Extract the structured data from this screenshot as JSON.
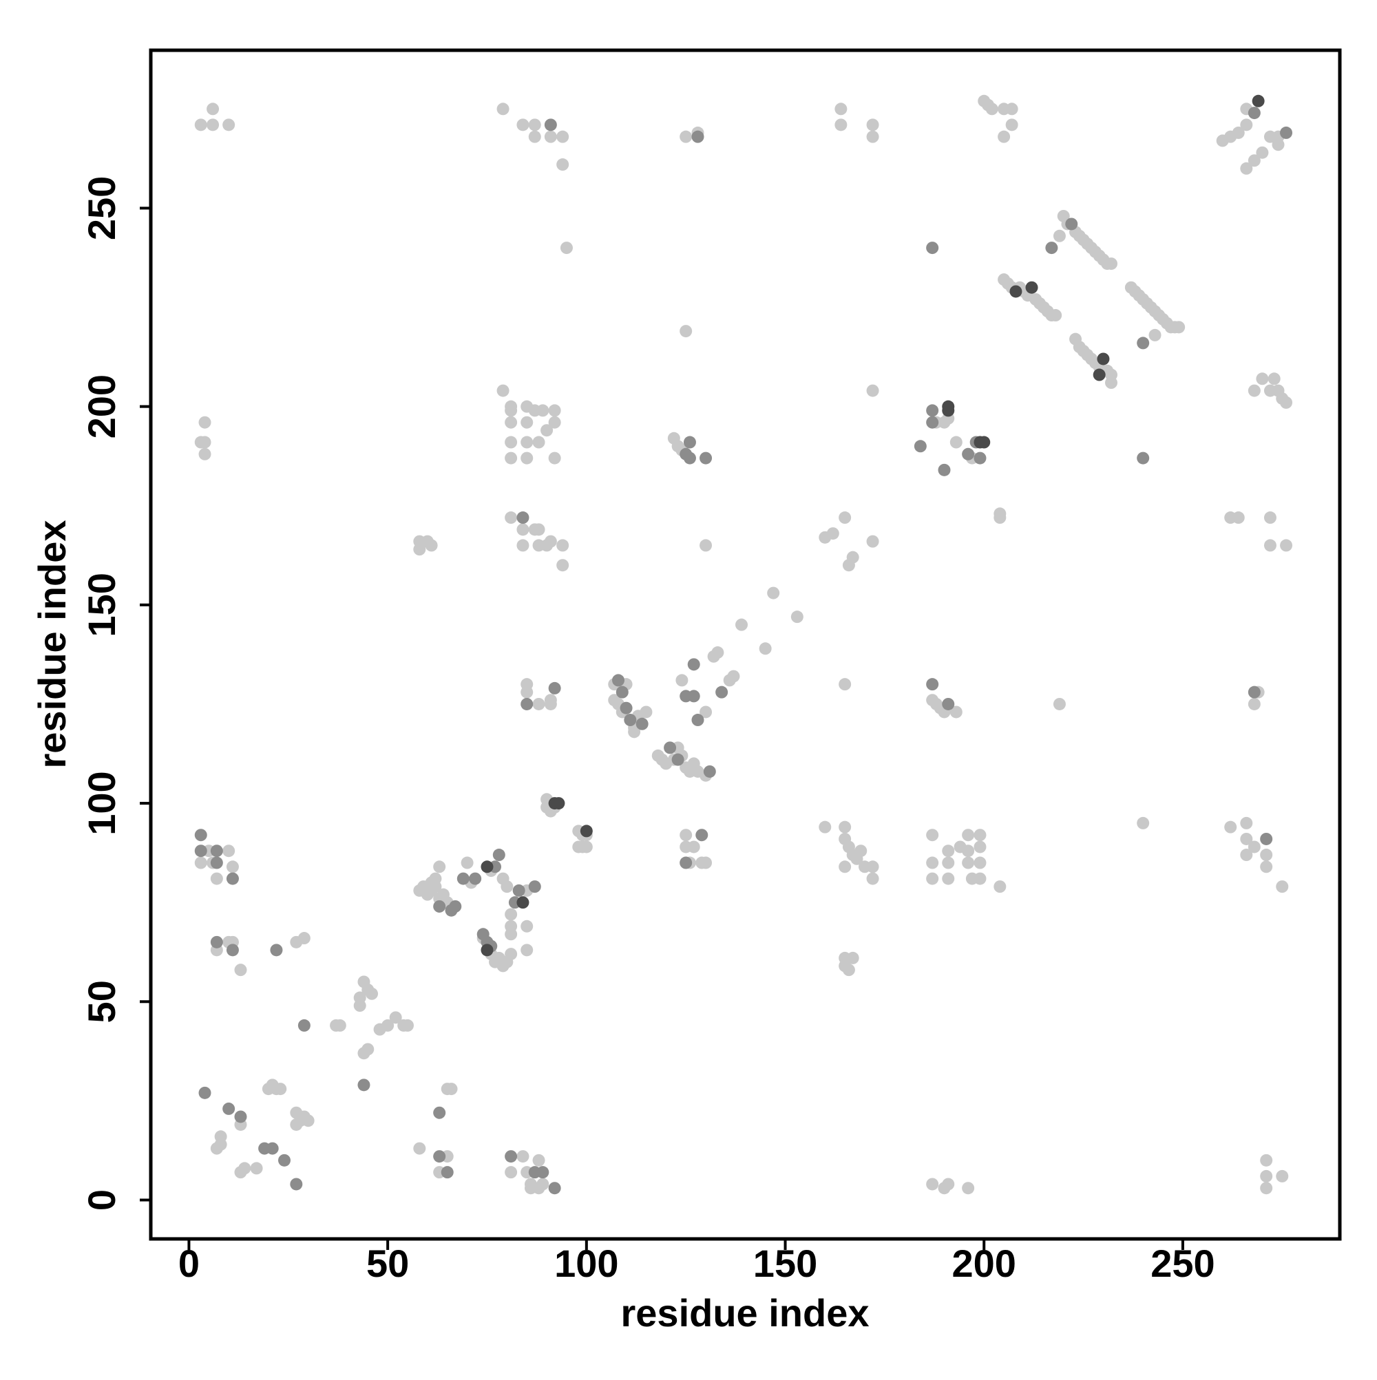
{
  "chart_data": {
    "type": "scatter",
    "x_label": "residue index",
    "y_label": "residue index",
    "xlim": [
      -9.6,
      289.5
    ],
    "ylim": [
      -9.8,
      289.8
    ],
    "xticks": [
      0,
      50,
      100,
      150,
      200,
      250
    ],
    "yticks": [
      0,
      50,
      100,
      150,
      200,
      250
    ],
    "grid": false,
    "series": [
      {
        "color": "#c8c8c8",
        "x": [
          3,
          6,
          6,
          10,
          79,
          84,
          87,
          87,
          91,
          94,
          94,
          95,
          125,
          128,
          125,
          164,
          164,
          172,
          172,
          201,
          202,
          205,
          207,
          207,
          205,
          200,
          260,
          262,
          264,
          266,
          266,
          270,
          268,
          266,
          272,
          274,
          274,
          220,
          221,
          223,
          224,
          225,
          226,
          227,
          228,
          229,
          230,
          231,
          232,
          219,
          205,
          206,
          207,
          209,
          210,
          211,
          213,
          214,
          215,
          216,
          217,
          218,
          237,
          238,
          239,
          240,
          241,
          242,
          243,
          244,
          245,
          246,
          247,
          248,
          249,
          243,
          223,
          224,
          225,
          226,
          227,
          228,
          229,
          231,
          232,
          232,
          268,
          270,
          272,
          273,
          274,
          275,
          276,
          4,
          4,
          3,
          4,
          79,
          81,
          81,
          81,
          81,
          81,
          85,
          85,
          85,
          85,
          87,
          88,
          89,
          90,
          92,
          92,
          92,
          122,
          123,
          124,
          172,
          188,
          190,
          191,
          193,
          197,
          204,
          204,
          58,
          58,
          60,
          61,
          81,
          84,
          84,
          87,
          88,
          88,
          90,
          91,
          94,
          94,
          130,
          160,
          162,
          165,
          166,
          167,
          172,
          262,
          264,
          272,
          272,
          276,
          147,
          153,
          139,
          145,
          107,
          110,
          107,
          108,
          109,
          112,
          113,
          112,
          115,
          118,
          119,
          120,
          122,
          124,
          125,
          126,
          127,
          128,
          130,
          123,
          124,
          130,
          136,
          137,
          132,
          133,
          85,
          85,
          88,
          91,
          91,
          165,
          187,
          188,
          189,
          190,
          193,
          219,
          268,
          269,
          90,
          90,
          91,
          92,
          98,
          99,
          100,
          99,
          98,
          100,
          125,
          125,
          126,
          127,
          129,
          130,
          160,
          165,
          165,
          166,
          167,
          168,
          169,
          170,
          172,
          172,
          165,
          187,
          187,
          187,
          191,
          191,
          191,
          194,
          196,
          196,
          196,
          197,
          199,
          199,
          199,
          199,
          204,
          240,
          262,
          266,
          266,
          266,
          268,
          271,
          271,
          275,
          3,
          5,
          6,
          7,
          10,
          11,
          7,
          10,
          11,
          13,
          27,
          29,
          58,
          59,
          60,
          61,
          62,
          63,
          64,
          65,
          70,
          71,
          63,
          62,
          61,
          76,
          79,
          80,
          85,
          81,
          81,
          85,
          81,
          85,
          74,
          76,
          77,
          78,
          79,
          80,
          81,
          165,
          165,
          166,
          167,
          37,
          38,
          43,
          44,
          45,
          46,
          43,
          44,
          45,
          48,
          50,
          52,
          54,
          55,
          13,
          20,
          21,
          22,
          23,
          27,
          28,
          29,
          30,
          27,
          7,
          8,
          8,
          13,
          14,
          17,
          58,
          63,
          65,
          65,
          66,
          81,
          84,
          85,
          86,
          86,
          88,
          88,
          89,
          187,
          190,
          191,
          196,
          271,
          271,
          271,
          275
        ],
        "values": [
          271,
          275,
          271,
          271,
          275,
          271,
          271,
          268,
          268,
          268,
          261,
          240,
          268,
          269,
          219,
          275,
          271,
          271,
          268,
          276,
          275,
          275,
          275,
          271,
          268,
          277,
          267,
          268,
          269,
          271,
          275,
          264,
          262,
          260,
          268,
          268,
          266,
          248,
          246,
          244,
          243,
          242,
          241,
          240,
          239,
          238,
          237,
          236,
          236,
          243,
          232,
          231,
          230,
          230,
          229,
          228,
          227,
          226,
          225,
          224,
          223,
          223,
          230,
          229,
          228,
          227,
          226,
          225,
          224,
          223,
          222,
          221,
          220,
          220,
          220,
          218,
          217,
          215,
          214,
          213,
          212,
          211,
          210,
          209,
          208,
          206,
          204,
          207,
          204,
          207,
          204,
          202,
          201,
          196,
          191,
          191,
          188,
          204,
          200,
          199,
          196,
          191,
          187,
          200,
          196,
          191,
          187,
          199,
          191,
          199,
          194,
          199,
          196,
          187,
          192,
          190,
          189,
          204,
          196,
          196,
          197,
          191,
          187,
          173,
          172,
          166,
          164,
          166,
          165,
          172,
          169,
          165,
          169,
          169,
          165,
          165,
          166,
          165,
          160,
          165,
          167,
          168,
          172,
          160,
          162,
          166,
          172,
          172,
          172,
          165,
          165,
          153,
          147,
          145,
          139,
          130,
          130,
          126,
          125,
          123,
          119,
          122,
          118,
          123,
          112,
          111,
          110,
          111,
          112,
          109,
          108,
          110,
          108,
          107,
          114,
          131,
          123,
          131,
          132,
          137,
          138,
          130,
          128,
          125,
          125,
          126,
          130,
          126,
          125,
          124,
          123,
          123,
          125,
          125,
          128,
          101,
          99,
          98,
          99,
          93,
          92,
          92,
          89,
          89,
          89,
          92,
          89,
          85,
          89,
          85,
          85,
          94,
          94,
          91,
          89,
          87,
          86,
          88,
          84,
          84,
          81,
          84,
          92,
          85,
          81,
          88,
          85,
          81,
          89,
          92,
          88,
          85,
          81,
          92,
          89,
          85,
          81,
          79,
          95,
          94,
          95,
          91,
          87,
          89,
          87,
          84,
          79,
          85,
          88,
          85,
          81,
          88,
          84,
          63,
          65,
          65,
          58,
          65,
          66,
          78,
          79,
          77,
          80,
          79,
          76,
          77,
          75,
          85,
          80,
          84,
          81,
          78,
          83,
          81,
          79,
          78,
          72,
          69,
          69,
          67,
          63,
          66,
          62,
          60,
          61,
          59,
          60,
          62,
          59,
          61,
          58,
          61,
          44,
          44,
          51,
          55,
          53,
          52,
          49,
          37,
          38,
          43,
          44,
          46,
          44,
          44,
          19,
          28,
          29,
          28,
          28,
          22,
          20,
          21,
          20,
          19,
          13,
          16,
          14,
          7,
          8,
          8,
          13,
          7,
          11,
          28,
          28,
          7,
          11,
          7,
          4,
          3,
          10,
          3,
          4,
          4,
          3,
          4,
          3,
          10,
          6,
          3,
          6
        ]
      },
      {
        "color": "#8c8c8c",
        "x": [
          91,
          128,
          268,
          276,
          222,
          217,
          187,
          240,
          240,
          125,
          126,
          126,
          130,
          187,
          187,
          184,
          198,
          199,
          196,
          190,
          84,
          127,
          108,
          109,
          110,
          111,
          114,
          131,
          121,
          123,
          127,
          128,
          134,
          125,
          85,
          92,
          187,
          191,
          268,
          125,
          129,
          271,
          3,
          3,
          7,
          7,
          11,
          7,
          11,
          22,
          63,
          66,
          67,
          69,
          72,
          78,
          77,
          83,
          87,
          82,
          75,
          74,
          76,
          29,
          44,
          4,
          10,
          13,
          19,
          21,
          24,
          27,
          63,
          63,
          65,
          81,
          87,
          89,
          92
        ],
        "values": [
          271,
          268,
          274,
          269,
          246,
          240,
          240,
          216,
          187,
          188,
          187,
          191,
          187,
          199,
          196,
          190,
          191,
          187,
          188,
          184,
          172,
          127,
          131,
          128,
          124,
          121,
          120,
          108,
          114,
          111,
          135,
          121,
          128,
          127,
          125,
          129,
          130,
          125,
          128,
          85,
          92,
          91,
          92,
          88,
          88,
          85,
          81,
          65,
          63,
          63,
          74,
          73,
          74,
          81,
          81,
          87,
          84,
          78,
          79,
          75,
          65,
          67,
          64,
          44,
          29,
          27,
          23,
          21,
          13,
          13,
          10,
          4,
          22,
          11,
          7,
          11,
          7,
          7,
          3
        ]
      },
      {
        "color": "#4a4a4a",
        "x": [
          269,
          208,
          212,
          230,
          229,
          191,
          191,
          199,
          200,
          92,
          93,
          100,
          75,
          84,
          75
        ],
        "values": [
          277,
          229,
          230,
          212,
          208,
          200,
          199,
          191,
          191,
          100,
          100,
          93,
          84,
          75,
          63
        ]
      }
    ]
  }
}
